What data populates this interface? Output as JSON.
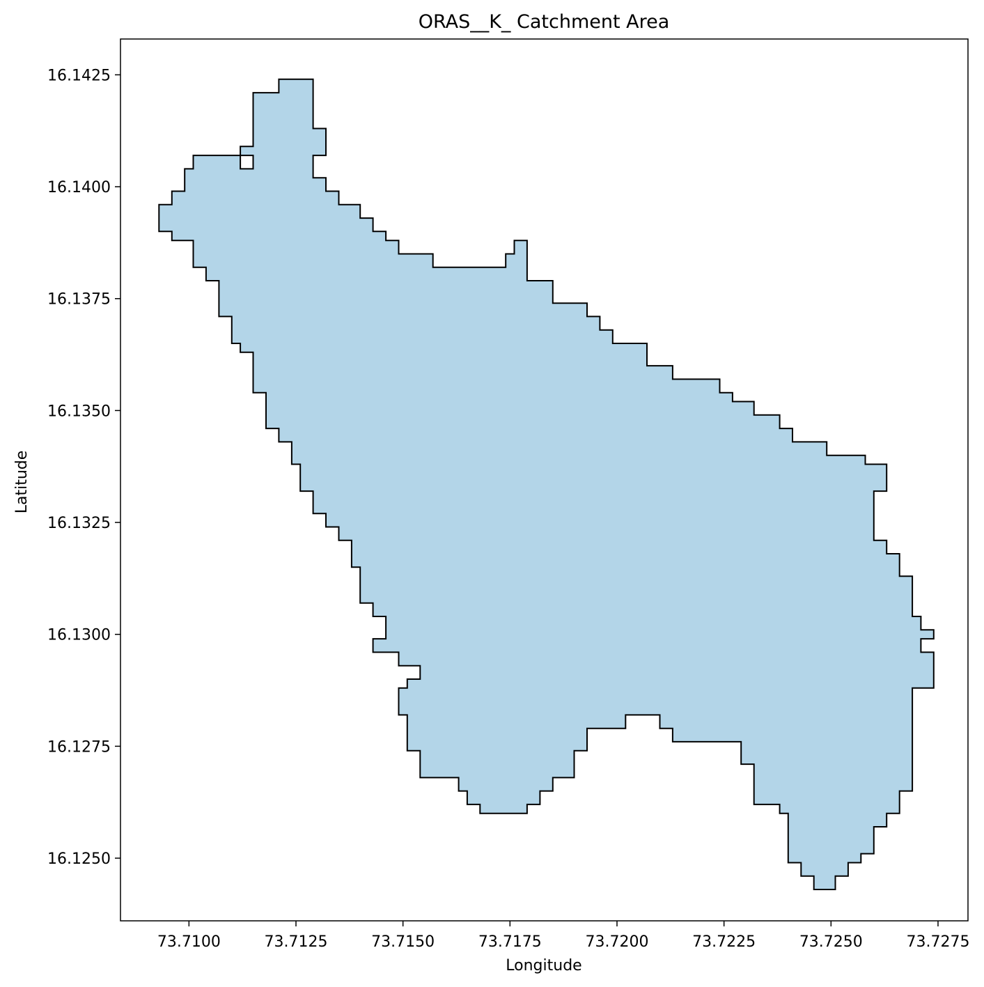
{
  "chart_data": {
    "type": "area",
    "title": "ORAS__K_ Catchment Area",
    "xlabel": "Longitude",
    "ylabel": "Latitude",
    "xlim": [
      73.7084,
      73.7282
    ],
    "ylim": [
      16.1236,
      16.1433
    ],
    "xticks": [
      73.71,
      73.7125,
      73.715,
      73.7175,
      73.72,
      73.7225,
      73.725,
      73.7275
    ],
    "xtick_labels": [
      "73.7100",
      "73.7125",
      "73.7150",
      "73.7175",
      "73.7200",
      "73.7225",
      "73.7250",
      "73.7275"
    ],
    "yticks": [
      16.125,
      16.1275,
      16.13,
      16.1325,
      16.135,
      16.1375,
      16.14,
      16.1425
    ],
    "ytick_labels": [
      "16.1250",
      "16.1275",
      "16.1300",
      "16.1325",
      "16.1350",
      "16.1375",
      "16.1400",
      "16.1425"
    ],
    "grid": false,
    "fill_color": "#b3d5e8",
    "edge_color": "#000000",
    "boundary": [
      [
        73.7093,
        16.1396
      ],
      [
        73.7096,
        16.1396
      ],
      [
        73.7096,
        16.1399
      ],
      [
        73.7099,
        16.1399
      ],
      [
        73.7099,
        16.1404
      ],
      [
        73.7101,
        16.1404
      ],
      [
        73.7101,
        16.1407
      ],
      [
        73.7112,
        16.1407
      ],
      [
        73.7112,
        16.1409
      ],
      [
        73.7115,
        16.1409
      ],
      [
        73.7115,
        16.1421
      ],
      [
        73.7121,
        16.1421
      ],
      [
        73.7121,
        16.1424
      ],
      [
        73.7129,
        16.1424
      ],
      [
        73.7129,
        16.1413
      ],
      [
        73.7132,
        16.1413
      ],
      [
        73.7132,
        16.1407
      ],
      [
        73.7129,
        16.1407
      ],
      [
        73.7129,
        16.1402
      ],
      [
        73.7132,
        16.1402
      ],
      [
        73.7132,
        16.1399
      ],
      [
        73.7135,
        16.1399
      ],
      [
        73.7135,
        16.1396
      ],
      [
        73.714,
        16.1396
      ],
      [
        73.714,
        16.1393
      ],
      [
        73.7143,
        16.1393
      ],
      [
        73.7143,
        16.139
      ],
      [
        73.7146,
        16.139
      ],
      [
        73.7146,
        16.1388
      ],
      [
        73.7149,
        16.1388
      ],
      [
        73.7149,
        16.1385
      ],
      [
        73.7157,
        16.1385
      ],
      [
        73.7157,
        16.1382
      ],
      [
        73.7174,
        16.1382
      ],
      [
        73.7174,
        16.1385
      ],
      [
        73.7176,
        16.1385
      ],
      [
        73.7176,
        16.1388
      ],
      [
        73.7179,
        16.1388
      ],
      [
        73.7179,
        16.1379
      ],
      [
        73.7185,
        16.1379
      ],
      [
        73.7185,
        16.1374
      ],
      [
        73.7193,
        16.1374
      ],
      [
        73.7193,
        16.1371
      ],
      [
        73.7196,
        16.1371
      ],
      [
        73.7196,
        16.1368
      ],
      [
        73.7199,
        16.1368
      ],
      [
        73.7199,
        16.1365
      ],
      [
        73.7207,
        16.1365
      ],
      [
        73.7207,
        16.136
      ],
      [
        73.7213,
        16.136
      ],
      [
        73.7213,
        16.1357
      ],
      [
        73.7224,
        16.1357
      ],
      [
        73.7224,
        16.1354
      ],
      [
        73.7227,
        16.1354
      ],
      [
        73.7227,
        16.1352
      ],
      [
        73.7232,
        16.1352
      ],
      [
        73.7232,
        16.1349
      ],
      [
        73.7238,
        16.1349
      ],
      [
        73.7238,
        16.1346
      ],
      [
        73.7241,
        16.1346
      ],
      [
        73.7241,
        16.1343
      ],
      [
        73.7249,
        16.1343
      ],
      [
        73.7249,
        16.134
      ],
      [
        73.7258,
        16.134
      ],
      [
        73.7258,
        16.1338
      ],
      [
        73.7263,
        16.1338
      ],
      [
        73.7263,
        16.1332
      ],
      [
        73.726,
        16.1332
      ],
      [
        73.726,
        16.1321
      ],
      [
        73.7263,
        16.1321
      ],
      [
        73.7263,
        16.1318
      ],
      [
        73.7266,
        16.1318
      ],
      [
        73.7266,
        16.1313
      ],
      [
        73.7269,
        16.1313
      ],
      [
        73.7269,
        16.1304
      ],
      [
        73.7271,
        16.1304
      ],
      [
        73.7271,
        16.1301
      ],
      [
        73.7274,
        16.1301
      ],
      [
        73.7274,
        16.1299
      ],
      [
        73.7271,
        16.1299
      ],
      [
        73.7271,
        16.1296
      ],
      [
        73.7274,
        16.1296
      ],
      [
        73.7274,
        16.1288
      ],
      [
        73.7269,
        16.1288
      ],
      [
        73.7269,
        16.1265
      ],
      [
        73.7266,
        16.1265
      ],
      [
        73.7266,
        16.126
      ],
      [
        73.7263,
        16.126
      ],
      [
        73.7263,
        16.1257
      ],
      [
        73.726,
        16.1257
      ],
      [
        73.726,
        16.1251
      ],
      [
        73.7257,
        16.1251
      ],
      [
        73.7257,
        16.1249
      ],
      [
        73.7254,
        16.1249
      ],
      [
        73.7254,
        16.1246
      ],
      [
        73.7251,
        16.1246
      ],
      [
        73.7251,
        16.1243
      ],
      [
        73.7246,
        16.1243
      ],
      [
        73.7246,
        16.1246
      ],
      [
        73.7243,
        16.1246
      ],
      [
        73.7243,
        16.1249
      ],
      [
        73.724,
        16.1249
      ],
      [
        73.724,
        16.126
      ],
      [
        73.7238,
        16.126
      ],
      [
        73.7238,
        16.1262
      ],
      [
        73.7232,
        16.1262
      ],
      [
        73.7232,
        16.1271
      ],
      [
        73.7229,
        16.1271
      ],
      [
        73.7229,
        16.1276
      ],
      [
        73.7213,
        16.1276
      ],
      [
        73.7213,
        16.1279
      ],
      [
        73.721,
        16.1279
      ],
      [
        73.721,
        16.1282
      ],
      [
        73.7202,
        16.1282
      ],
      [
        73.7202,
        16.1279
      ],
      [
        73.7193,
        16.1279
      ],
      [
        73.7193,
        16.1274
      ],
      [
        73.719,
        16.1274
      ],
      [
        73.719,
        16.1268
      ],
      [
        73.7185,
        16.1268
      ],
      [
        73.7185,
        16.1265
      ],
      [
        73.7182,
        16.1265
      ],
      [
        73.7182,
        16.1262
      ],
      [
        73.7179,
        16.1262
      ],
      [
        73.7179,
        16.126
      ],
      [
        73.7168,
        16.126
      ],
      [
        73.7168,
        16.1262
      ],
      [
        73.7165,
        16.1262
      ],
      [
        73.7165,
        16.1265
      ],
      [
        73.7163,
        16.1265
      ],
      [
        73.7163,
        16.1268
      ],
      [
        73.7154,
        16.1268
      ],
      [
        73.7154,
        16.1274
      ],
      [
        73.7151,
        16.1274
      ],
      [
        73.7151,
        16.1282
      ],
      [
        73.7149,
        16.1282
      ],
      [
        73.7149,
        16.1288
      ],
      [
        73.7151,
        16.1288
      ],
      [
        73.7151,
        16.129
      ],
      [
        73.7154,
        16.129
      ],
      [
        73.7154,
        16.1293
      ],
      [
        73.7149,
        16.1293
      ],
      [
        73.7149,
        16.1296
      ],
      [
        73.7143,
        16.1296
      ],
      [
        73.7143,
        16.1299
      ],
      [
        73.7146,
        16.1299
      ],
      [
        73.7146,
        16.1304
      ],
      [
        73.7143,
        16.1304
      ],
      [
        73.7143,
        16.1307
      ],
      [
        73.714,
        16.1307
      ],
      [
        73.714,
        16.1315
      ],
      [
        73.7138,
        16.1315
      ],
      [
        73.7138,
        16.1321
      ],
      [
        73.7135,
        16.1321
      ],
      [
        73.7135,
        16.1324
      ],
      [
        73.7132,
        16.1324
      ],
      [
        73.7132,
        16.1327
      ],
      [
        73.7129,
        16.1327
      ],
      [
        73.7129,
        16.1332
      ],
      [
        73.7126,
        16.1332
      ],
      [
        73.7126,
        16.1338
      ],
      [
        73.7124,
        16.1338
      ],
      [
        73.7124,
        16.1343
      ],
      [
        73.7121,
        16.1343
      ],
      [
        73.7121,
        16.1346
      ],
      [
        73.7118,
        16.1346
      ],
      [
        73.7118,
        16.1354
      ],
      [
        73.7115,
        16.1354
      ],
      [
        73.7115,
        16.1363
      ],
      [
        73.7112,
        16.1363
      ],
      [
        73.7112,
        16.1365
      ],
      [
        73.711,
        16.1365
      ],
      [
        73.711,
        16.1371
      ],
      [
        73.7107,
        16.1371
      ],
      [
        73.7107,
        16.1379
      ],
      [
        73.7104,
        16.1379
      ],
      [
        73.7104,
        16.1382
      ],
      [
        73.7101,
        16.1382
      ],
      [
        73.7101,
        16.1388
      ],
      [
        73.7096,
        16.1388
      ],
      [
        73.7096,
        16.139
      ],
      [
        73.7093,
        16.139
      ]
    ],
    "holes": [
      [
        [
          73.7112,
          16.1407
        ],
        [
          73.7115,
          16.1407
        ],
        [
          73.7115,
          16.1404
        ],
        [
          73.7112,
          16.1404
        ]
      ]
    ]
  }
}
